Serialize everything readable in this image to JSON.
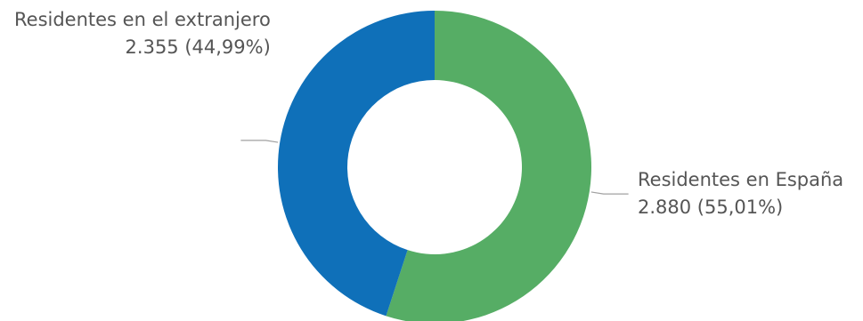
{
  "chart_data": {
    "type": "pie",
    "donut": true,
    "slices": [
      {
        "name": "Residentes en España",
        "value": 2880,
        "value_label": "2.880",
        "percent_label": "55,01%",
        "color": "#56ad65"
      },
      {
        "name": "Residentes en el extranjero",
        "value": 2355,
        "value_label": "2.355",
        "percent_label": "44,99%",
        "color": "#0f70b9"
      }
    ],
    "start": "top",
    "direction": "clockwise",
    "legend": "none"
  },
  "labels": {
    "extranjero": {
      "name": "Residentes en el extranjero",
      "detail": "2.355 (44,99%)"
    },
    "espana": {
      "name": "Residentes en España",
      "detail": "2.880 (55,01%)"
    }
  }
}
